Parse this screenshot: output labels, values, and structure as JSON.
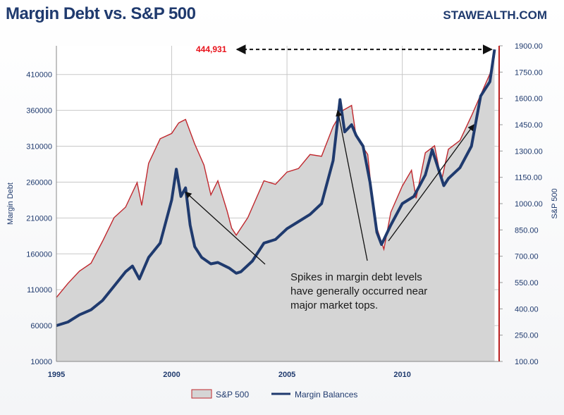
{
  "chart_data": {
    "type": "area+line",
    "title": "Margin Debt vs. S&P 500",
    "source": "STAWEALTH.COM",
    "x_ticks": [
      "1995",
      "2000",
      "2005",
      "2010"
    ],
    "y_left": {
      "label": "Margin Debt",
      "range": [
        10000,
        450000
      ],
      "ticks": [
        "10000",
        "60000",
        "110000",
        "160000",
        "210000",
        "260000",
        "310000",
        "360000",
        "410000"
      ]
    },
    "y_right": {
      "label": "S&P 500",
      "range": [
        100,
        1900
      ],
      "ticks": [
        "100.00",
        "250.00",
        "400.00",
        "550.00",
        "700.00",
        "850.00",
        "1000.00",
        "1150.00",
        "1300.00",
        "1450.00",
        "1600.00",
        "1750.00",
        "1900.00"
      ]
    },
    "series": [
      {
        "name": "S&P 500",
        "axis": "right",
        "kind": "area",
        "color": "#c0272d",
        "fill": "#d5d5d5",
        "points": [
          [
            1995.0,
            465
          ],
          [
            1995.5,
            545
          ],
          [
            1996.0,
            615
          ],
          [
            1996.5,
            660
          ],
          [
            1997.0,
            785
          ],
          [
            1997.5,
            920
          ],
          [
            1998.0,
            980
          ],
          [
            1998.5,
            1120
          ],
          [
            1998.7,
            990
          ],
          [
            1999.0,
            1230
          ],
          [
            1999.5,
            1370
          ],
          [
            2000.0,
            1400
          ],
          [
            2000.3,
            1460
          ],
          [
            2000.6,
            1480
          ],
          [
            2001.0,
            1340
          ],
          [
            2001.4,
            1220
          ],
          [
            2001.7,
            1050
          ],
          [
            2002.0,
            1130
          ],
          [
            2002.4,
            960
          ],
          [
            2002.6,
            860
          ],
          [
            2002.8,
            820
          ],
          [
            2003.0,
            860
          ],
          [
            2003.3,
            920
          ],
          [
            2003.6,
            1010
          ],
          [
            2004.0,
            1130
          ],
          [
            2004.5,
            1110
          ],
          [
            2005.0,
            1180
          ],
          [
            2005.5,
            1200
          ],
          [
            2006.0,
            1280
          ],
          [
            2006.5,
            1270
          ],
          [
            2007.0,
            1440
          ],
          [
            2007.4,
            1530
          ],
          [
            2007.8,
            1560
          ],
          [
            2008.0,
            1380
          ],
          [
            2008.5,
            1280
          ],
          [
            2008.8,
            900
          ],
          [
            2009.0,
            820
          ],
          [
            2009.2,
            740
          ],
          [
            2009.5,
            950
          ],
          [
            2010.0,
            1100
          ],
          [
            2010.4,
            1190
          ],
          [
            2010.6,
            1030
          ],
          [
            2011.0,
            1290
          ],
          [
            2011.4,
            1330
          ],
          [
            2011.7,
            1130
          ],
          [
            2012.0,
            1310
          ],
          [
            2012.5,
            1360
          ],
          [
            2013.0,
            1500
          ],
          [
            2013.5,
            1650
          ],
          [
            2013.8,
            1740
          ],
          [
            2014.0,
            1840
          ]
        ]
      },
      {
        "name": "Margin Balances",
        "axis": "left",
        "kind": "line",
        "color": "#1f3a6e",
        "points": [
          [
            1995.0,
            60000
          ],
          [
            1995.5,
            65000
          ],
          [
            1996.0,
            75000
          ],
          [
            1996.5,
            82000
          ],
          [
            1997.0,
            95000
          ],
          [
            1997.5,
            115000
          ],
          [
            1998.0,
            135000
          ],
          [
            1998.3,
            143000
          ],
          [
            1998.6,
            125000
          ],
          [
            1999.0,
            155000
          ],
          [
            1999.5,
            175000
          ],
          [
            2000.0,
            235000
          ],
          [
            2000.2,
            278000
          ],
          [
            2000.4,
            240000
          ],
          [
            2000.6,
            252000
          ],
          [
            2000.8,
            200000
          ],
          [
            2001.0,
            170000
          ],
          [
            2001.3,
            155000
          ],
          [
            2001.7,
            146000
          ],
          [
            2002.0,
            148000
          ],
          [
            2002.5,
            140000
          ],
          [
            2002.8,
            133000
          ],
          [
            2003.0,
            135000
          ],
          [
            2003.5,
            150000
          ],
          [
            2004.0,
            175000
          ],
          [
            2004.5,
            180000
          ],
          [
            2005.0,
            195000
          ],
          [
            2005.5,
            205000
          ],
          [
            2006.0,
            215000
          ],
          [
            2006.5,
            230000
          ],
          [
            2007.0,
            290000
          ],
          [
            2007.3,
            375000
          ],
          [
            2007.5,
            330000
          ],
          [
            2007.8,
            340000
          ],
          [
            2008.0,
            325000
          ],
          [
            2008.3,
            310000
          ],
          [
            2008.6,
            260000
          ],
          [
            2008.9,
            190000
          ],
          [
            2009.1,
            173000
          ],
          [
            2009.5,
            200000
          ],
          [
            2010.0,
            230000
          ],
          [
            2010.5,
            240000
          ],
          [
            2011.0,
            270000
          ],
          [
            2011.3,
            305000
          ],
          [
            2011.6,
            275000
          ],
          [
            2011.8,
            255000
          ],
          [
            2012.0,
            265000
          ],
          [
            2012.5,
            280000
          ],
          [
            2013.0,
            310000
          ],
          [
            2013.4,
            380000
          ],
          [
            2013.8,
            400000
          ],
          [
            2014.0,
            444931
          ]
        ]
      }
    ],
    "annotations": {
      "peak_label": "444,931",
      "note_lines": [
        "Spikes in margin debt levels",
        "have generally occurred near",
        "major market tops."
      ]
    },
    "legend": [
      "S&P 500",
      "Margin Balances"
    ]
  }
}
